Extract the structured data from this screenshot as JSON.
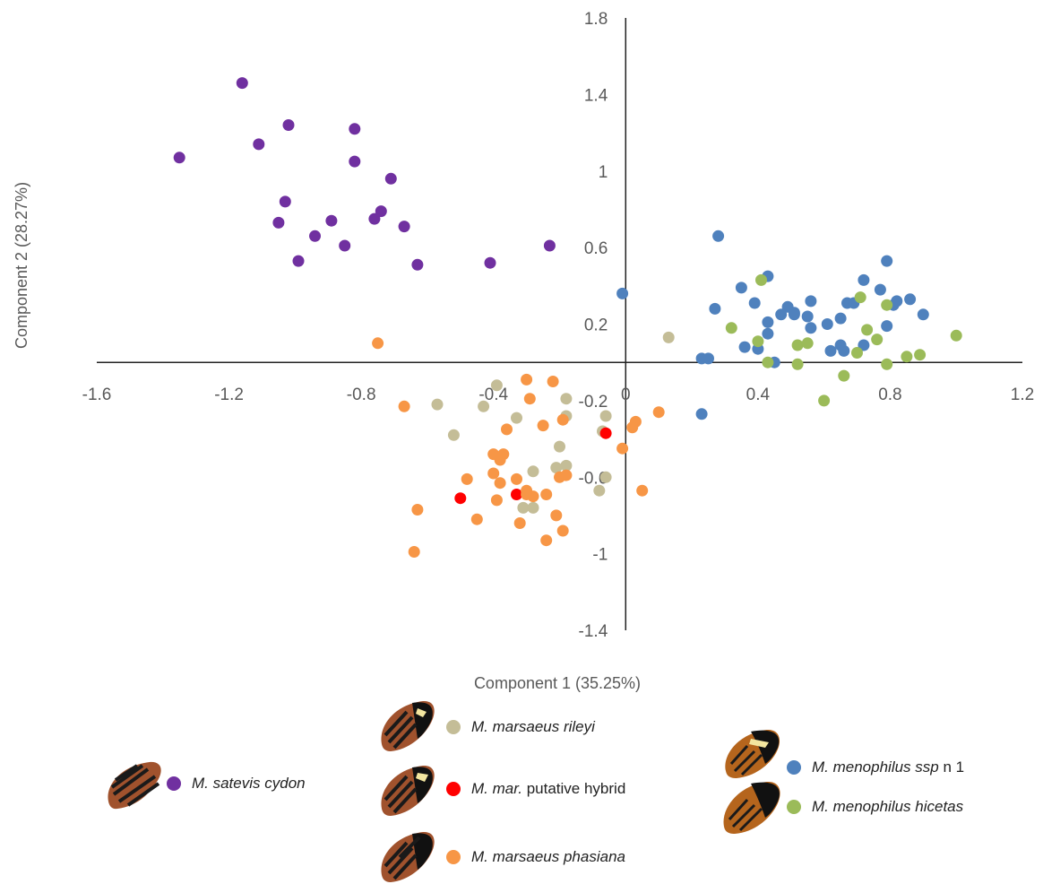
{
  "chart_data": {
    "type": "scatter",
    "xlabel": "Component 1 (35.25%)",
    "ylabel": "Component 2 (28.27%)",
    "xlim": [
      -1.6,
      1.2
    ],
    "ylim": [
      -1.4,
      1.8
    ],
    "x_ticks": [
      "-1.6",
      "-1.2",
      "-0.8",
      "-0.4",
      "0",
      "0.4",
      "0.8",
      "1.2"
    ],
    "y_ticks": [
      "1.8",
      "1.4",
      "1",
      "0.6",
      "0.2",
      "-0.2",
      "-0.6",
      "-1",
      "-1.4"
    ],
    "grid": false,
    "series": [
      {
        "name": "M. satevis cydon",
        "color": "#7030A0",
        "points": [
          [
            -1.16,
            1.46
          ],
          [
            -1.35,
            1.07
          ],
          [
            -1.11,
            1.14
          ],
          [
            -1.02,
            1.24
          ],
          [
            -0.82,
            1.22
          ],
          [
            -0.82,
            1.05
          ],
          [
            -0.71,
            0.96
          ],
          [
            -1.03,
            0.84
          ],
          [
            -1.05,
            0.73
          ],
          [
            -0.89,
            0.74
          ],
          [
            -0.76,
            0.75
          ],
          [
            -0.74,
            0.79
          ],
          [
            -0.67,
            0.71
          ],
          [
            -0.94,
            0.66
          ],
          [
            -0.85,
            0.61
          ],
          [
            -0.99,
            0.53
          ],
          [
            -0.63,
            0.51
          ],
          [
            -0.41,
            0.52
          ],
          [
            -0.23,
            0.61
          ]
        ]
      },
      {
        "name": "M. marsaeus rileyi",
        "color": "#C4BD97",
        "points": [
          [
            0.13,
            0.13
          ],
          [
            -0.39,
            -0.12
          ],
          [
            -0.57,
            -0.22
          ],
          [
            -0.43,
            -0.23
          ],
          [
            -0.33,
            -0.29
          ],
          [
            -0.18,
            -0.19
          ],
          [
            -0.18,
            -0.28
          ],
          [
            -0.06,
            -0.28
          ],
          [
            -0.07,
            -0.36
          ],
          [
            -0.52,
            -0.38
          ],
          [
            -0.2,
            -0.44
          ],
          [
            -0.18,
            -0.54
          ],
          [
            -0.21,
            -0.55
          ],
          [
            -0.28,
            -0.57
          ],
          [
            -0.06,
            -0.6
          ],
          [
            -0.08,
            -0.67
          ],
          [
            -0.31,
            -0.76
          ],
          [
            -0.28,
            -0.76
          ]
        ]
      },
      {
        "name": "M. mar. putative hybrid",
        "color": "#FF0000",
        "points": [
          [
            -0.06,
            -0.37
          ],
          [
            -0.5,
            -0.71
          ],
          [
            -0.33,
            -0.69
          ]
        ]
      },
      {
        "name": "M. marsaeus phasiana",
        "color": "#F79646",
        "points": [
          [
            -0.75,
            0.1
          ],
          [
            -0.67,
            -0.23
          ],
          [
            -0.3,
            -0.09
          ],
          [
            -0.22,
            -0.1
          ],
          [
            -0.29,
            -0.19
          ],
          [
            -0.19,
            -0.3
          ],
          [
            -0.25,
            -0.33
          ],
          [
            0.03,
            -0.31
          ],
          [
            0.02,
            -0.34
          ],
          [
            0.1,
            -0.26
          ],
          [
            -0.36,
            -0.35
          ],
          [
            -0.4,
            -0.48
          ],
          [
            -0.37,
            -0.48
          ],
          [
            -0.38,
            -0.51
          ],
          [
            -0.01,
            -0.45
          ],
          [
            -0.48,
            -0.61
          ],
          [
            -0.4,
            -0.58
          ],
          [
            -0.38,
            -0.63
          ],
          [
            -0.33,
            -0.61
          ],
          [
            -0.3,
            -0.67
          ],
          [
            -0.2,
            -0.6
          ],
          [
            -0.18,
            -0.59
          ],
          [
            -0.3,
            -0.69
          ],
          [
            -0.28,
            -0.7
          ],
          [
            -0.24,
            -0.69
          ],
          [
            0.05,
            -0.67
          ],
          [
            -0.39,
            -0.72
          ],
          [
            -0.63,
            -0.77
          ],
          [
            -0.45,
            -0.82
          ],
          [
            -0.32,
            -0.84
          ],
          [
            -0.21,
            -0.8
          ],
          [
            -0.19,
            -0.88
          ],
          [
            -0.24,
            -0.93
          ],
          [
            -0.64,
            -0.99
          ]
        ]
      },
      {
        "name": "M. menophilus ssp n 1",
        "color": "#4F81BD",
        "points": [
          [
            -0.01,
            0.36
          ],
          [
            0.28,
            0.66
          ],
          [
            0.79,
            0.53
          ],
          [
            0.43,
            0.45
          ],
          [
            0.72,
            0.43
          ],
          [
            0.35,
            0.39
          ],
          [
            0.77,
            0.38
          ],
          [
            0.39,
            0.31
          ],
          [
            0.49,
            0.29
          ],
          [
            0.51,
            0.25
          ],
          [
            0.56,
            0.32
          ],
          [
            0.61,
            0.2
          ],
          [
            0.67,
            0.31
          ],
          [
            0.69,
            0.31
          ],
          [
            0.82,
            0.32
          ],
          [
            0.81,
            0.3
          ],
          [
            0.86,
            0.33
          ],
          [
            0.27,
            0.28
          ],
          [
            0.43,
            0.21
          ],
          [
            0.47,
            0.25
          ],
          [
            0.51,
            0.26
          ],
          [
            0.55,
            0.24
          ],
          [
            0.56,
            0.18
          ],
          [
            0.65,
            0.23
          ],
          [
            0.79,
            0.19
          ],
          [
            0.9,
            0.25
          ],
          [
            0.36,
            0.08
          ],
          [
            0.4,
            0.07
          ],
          [
            0.43,
            0.15
          ],
          [
            0.62,
            0.06
          ],
          [
            0.65,
            0.09
          ],
          [
            0.66,
            0.06
          ],
          [
            0.72,
            0.09
          ],
          [
            0.23,
            0.02
          ],
          [
            0.25,
            0.02
          ],
          [
            0.45,
            0.0
          ],
          [
            0.23,
            -0.27
          ]
        ]
      },
      {
        "name": "M. menophilus hicetas",
        "color": "#9BBB59",
        "points": [
          [
            0.41,
            0.43
          ],
          [
            0.71,
            0.34
          ],
          [
            0.79,
            0.3
          ],
          [
            0.32,
            0.18
          ],
          [
            0.4,
            0.11
          ],
          [
            0.52,
            0.09
          ],
          [
            0.55,
            0.1
          ],
          [
            0.73,
            0.17
          ],
          [
            0.76,
            0.12
          ],
          [
            0.7,
            0.05
          ],
          [
            0.43,
            0.0
          ],
          [
            0.52,
            -0.01
          ],
          [
            0.79,
            -0.01
          ],
          [
            0.85,
            0.03
          ],
          [
            0.89,
            0.04
          ],
          [
            1.0,
            0.14
          ],
          [
            0.66,
            -0.07
          ],
          [
            0.6,
            -0.2
          ]
        ]
      }
    ],
    "legend": {
      "placement": "bottom",
      "entries": [
        {
          "italic": "M. satevis cydon",
          "plain": "",
          "color": "#7030A0",
          "wing": "sat"
        },
        {
          "italic": "M. marsaeus rileyi",
          "plain": "",
          "color": "#C4BD97",
          "wing": "ril"
        },
        {
          "italic": "M. mar.",
          "plain": " putative hybrid",
          "color": "#FF0000",
          "wing": "hyb"
        },
        {
          "italic": "M. marsaeus phasiana",
          "plain": "",
          "color": "#F79646",
          "wing": "pha"
        },
        {
          "italic": "M. menophilus ssp",
          "plain": " n 1",
          "color": "#4F81BD",
          "wing": "men"
        },
        {
          "italic": "M. menophilus hicetas",
          "plain": "",
          "color": "#9BBB59",
          "wing": "hic"
        }
      ]
    }
  }
}
